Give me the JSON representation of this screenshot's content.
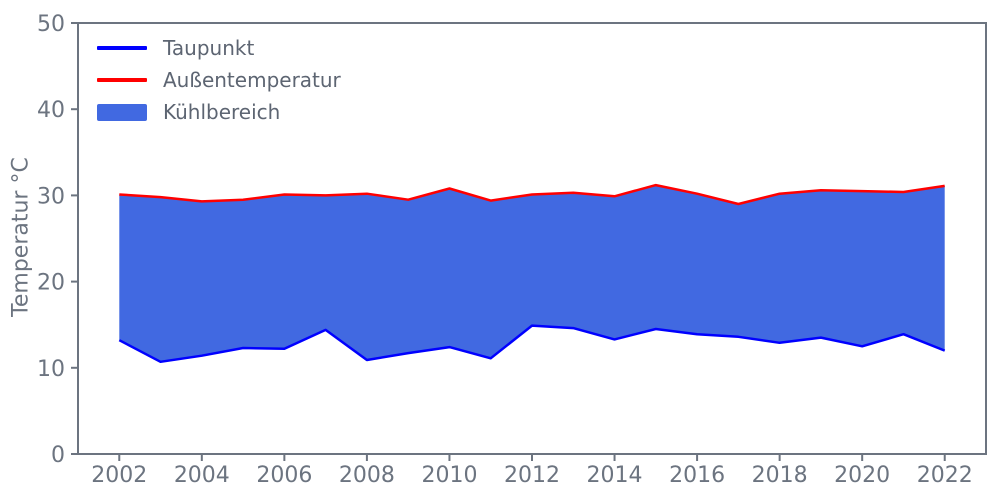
{
  "chart_data": {
    "type": "area",
    "ylabel": "Temperatur °C",
    "xlabel": "",
    "x": [
      2002,
      2003,
      2004,
      2005,
      2006,
      2007,
      2008,
      2009,
      2010,
      2011,
      2012,
      2013,
      2014,
      2015,
      2016,
      2017,
      2018,
      2019,
      2020,
      2021,
      2022
    ],
    "series": [
      {
        "name": "Taupunkt",
        "color": "#0000ff",
        "values": [
          13.2,
          10.7,
          11.4,
          12.3,
          12.2,
          14.4,
          10.9,
          11.7,
          12.4,
          11.1,
          14.9,
          14.6,
          13.3,
          14.5,
          13.9,
          13.6,
          12.9,
          13.5,
          12.5,
          13.9,
          12.0
        ]
      },
      {
        "name": "Außentemperatur",
        "color": "#ff0000",
        "values": [
          30.1,
          29.8,
          29.3,
          29.5,
          30.1,
          30.0,
          30.2,
          29.5,
          30.8,
          29.4,
          30.1,
          30.3,
          29.9,
          31.2,
          30.2,
          29.0,
          30.2,
          30.6,
          30.5,
          30.4,
          31.1
        ]
      }
    ],
    "fill_between": {
      "name": "Kühlbereich",
      "color": "#4169e1",
      "lower_series": "Taupunkt",
      "upper_series": "Außentemperatur"
    },
    "xlim": [
      2001,
      2023
    ],
    "ylim": [
      0,
      50
    ],
    "x_ticks": [
      2002,
      2004,
      2006,
      2008,
      2010,
      2012,
      2014,
      2016,
      2018,
      2020,
      2022
    ],
    "y_ticks": [
      0,
      10,
      20,
      30,
      40,
      50
    ],
    "grid": false,
    "legend_position": "upper-left",
    "axis_color": "#6c7480"
  }
}
